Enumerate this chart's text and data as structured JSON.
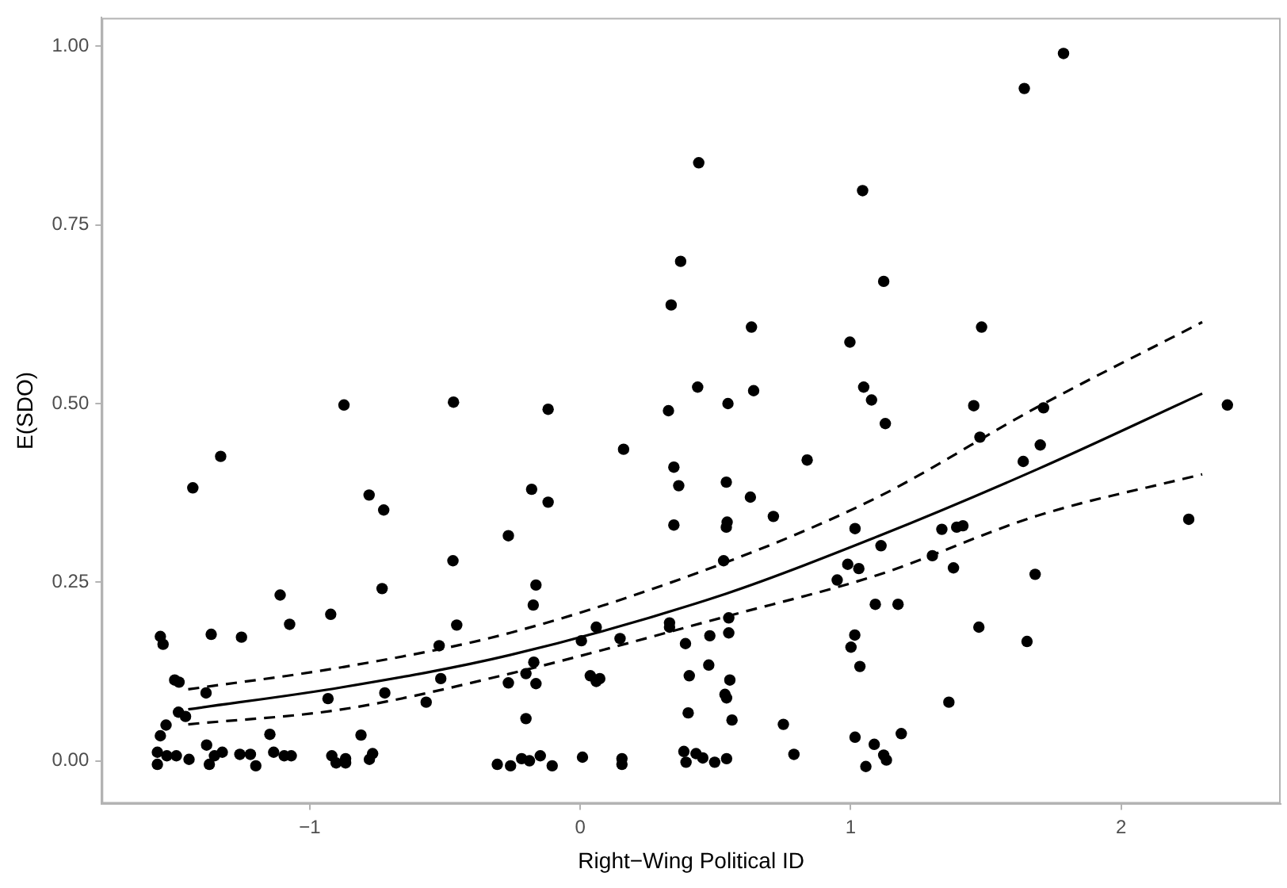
{
  "chart_data": {
    "type": "scatter",
    "xlabel": "Right−Wing Political ID",
    "ylabel": "E(SDO)",
    "xlim": [
      -1.77,
      2.59
    ],
    "ylim": [
      -0.06,
      1.04
    ],
    "xticks": [
      {
        "value": -1,
        "label": "−1"
      },
      0,
      1,
      2
    ],
    "yticks": [
      {
        "value": 0,
        "label": "0.00"
      },
      {
        "value": 0.25,
        "label": "0.25"
      },
      {
        "value": 0.5,
        "label": "0.50"
      },
      {
        "value": 0.75,
        "label": "0.75"
      },
      {
        "value": 1,
        "label": "1.00"
      }
    ],
    "grid": false,
    "legend": false,
    "series": [
      {
        "color": "#000000",
        "marker": "circle",
        "x": [
          -0.874,
          -0.469,
          -1.33,
          -1.433,
          -0.781,
          -0.727,
          -0.266,
          -0.471,
          -1.11,
          -0.733,
          -0.923,
          -1.075,
          -0.457,
          -1.553,
          -1.543,
          -1.365,
          -1.253,
          -0.522,
          -1.5,
          -1.484,
          -1.384,
          -0.516,
          -0.723,
          -0.933,
          -0.57,
          -0.266,
          -1.486,
          -1.46,
          -1.532,
          -1.553,
          -1.148,
          -0.811,
          -1.382,
          -1.564,
          -1.564,
          -1.529,
          -1.494,
          -1.447,
          -1.372,
          -1.353,
          -1.324,
          -1.259,
          -1.22,
          -1.2,
          -1.134,
          -1.095,
          -1.069,
          -0.919,
          -0.903,
          -0.868,
          -0.868,
          -0.78,
          -0.768,
          -0.307,
          -0.258,
          0.438,
          1.044,
          0.371,
          0.336,
          0.633,
          0.997,
          0.434,
          0.641,
          0.546,
          1.048,
          1.077,
          -0.119,
          0.326,
          0.16,
          0.839,
          0.346,
          0.364,
          -0.18,
          -0.119,
          0.54,
          0.629,
          0.714,
          0.346,
          0.543,
          0.54,
          1.016,
          0.53,
          0.989,
          1.03,
          0.95,
          -0.164,
          -0.174,
          1.091,
          0.059,
          0.004,
          0.147,
          0.33,
          0.33,
          0.389,
          0.479,
          0.549,
          0.549,
          1.015,
          1.001,
          1.034,
          0.475,
          0.403,
          0.553,
          0.535,
          0.541,
          -0.172,
          -0.201,
          -0.164,
          0.037,
          0.059,
          0.072,
          -0.201,
          0.399,
          0.561,
          0.751,
          0.79,
          1.016,
          1.056,
          -0.217,
          -0.188,
          -0.148,
          -0.104,
          0.008,
          0.154,
          0.154,
          0.383,
          0.391,
          0.428,
          0.453,
          0.497,
          0.541,
          1.787,
          1.642,
          1.122,
          1.484,
          1.455,
          1.713,
          2.393,
          1.128,
          1.478,
          1.701,
          1.638,
          2.25,
          1.337,
          1.392,
          1.415,
          1.112,
          1.302,
          1.38,
          1.682,
          1.175,
          1.474,
          1.652,
          1.363,
          1.187,
          1.087,
          1.122,
          1.132
        ],
        "values": [
          0.498,
          0.502,
          0.426,
          0.382,
          0.372,
          0.351,
          0.315,
          0.28,
          0.232,
          0.241,
          0.205,
          0.191,
          0.19,
          0.174,
          0.163,
          0.177,
          0.173,
          0.161,
          0.113,
          0.11,
          0.095,
          0.115,
          0.095,
          0.087,
          0.082,
          0.109,
          0.068,
          0.062,
          0.05,
          0.035,
          0.037,
          0.036,
          0.022,
          0.012,
          -0.005,
          0.007,
          0.007,
          0.002,
          -0.005,
          0.007,
          0.012,
          0.009,
          0.009,
          -0.007,
          0.012,
          0.007,
          0.007,
          0.007,
          -0.003,
          -0.003,
          0.003,
          0.002,
          0.01,
          -0.005,
          -0.007,
          0.837,
          0.798,
          0.699,
          0.638,
          0.607,
          0.586,
          0.523,
          0.518,
          0.5,
          0.523,
          0.505,
          0.492,
          0.49,
          0.436,
          0.421,
          0.411,
          0.385,
          0.38,
          0.362,
          0.39,
          0.369,
          0.342,
          0.33,
          0.334,
          0.327,
          0.325,
          0.28,
          0.275,
          0.269,
          0.253,
          0.246,
          0.218,
          0.219,
          0.187,
          0.168,
          0.171,
          0.193,
          0.187,
          0.164,
          0.175,
          0.2,
          0.179,
          0.176,
          0.159,
          0.132,
          0.134,
          0.119,
          0.113,
          0.093,
          0.088,
          0.138,
          0.122,
          0.108,
          0.119,
          0.111,
          0.115,
          0.059,
          0.067,
          0.057,
          0.051,
          0.009,
          0.033,
          -0.008,
          0.003,
          0.0,
          0.007,
          -0.007,
          0.005,
          0.003,
          -0.005,
          0.013,
          -0.002,
          0.01,
          0.004,
          -0.002,
          0.003,
          0.99,
          0.941,
          0.671,
          0.607,
          0.497,
          0.494,
          0.498,
          0.472,
          0.453,
          0.442,
          0.419,
          0.338,
          0.324,
          0.327,
          0.329,
          0.301,
          0.287,
          0.27,
          0.261,
          0.219,
          0.187,
          0.167,
          0.082,
          0.038,
          0.023,
          0.008,
          0.001
        ]
      },
      {
        "type": "line",
        "color": "#000000",
        "line_style": "solid",
        "x": [
          -1.45,
          -0.88,
          -0.26,
          0.54,
          1.1,
          1.69,
          2.3
        ],
        "values": [
          0.072,
          0.103,
          0.148,
          0.234,
          0.314,
          0.408,
          0.514
        ]
      },
      {
        "type": "line",
        "color": "#000000",
        "line_style": "dashed",
        "x": [
          -1.45,
          -0.88,
          -0.26,
          0.54,
          1.1,
          1.69,
          2.3
        ],
        "values": [
          0.1,
          0.131,
          0.179,
          0.278,
          0.369,
          0.495,
          0.614
        ]
      },
      {
        "type": "line",
        "color": "#000000",
        "line_style": "dashed",
        "x": [
          -1.45,
          -0.88,
          -0.26,
          0.54,
          1.1,
          1.69,
          2.3
        ],
        "values": [
          0.051,
          0.072,
          0.122,
          0.202,
          0.26,
          0.343,
          0.401
        ]
      }
    ]
  }
}
